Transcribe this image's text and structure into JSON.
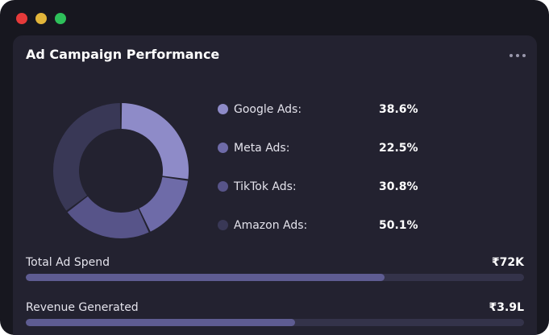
{
  "window": {
    "controls": [
      {
        "name": "close",
        "color": "#e63a3a"
      },
      {
        "name": "minimize",
        "color": "#e2b53a"
      },
      {
        "name": "maximize",
        "color": "#2ec05a"
      }
    ]
  },
  "card": {
    "title": "Ad Campaign Performance",
    "menu_icon": "more-horizontal-icon"
  },
  "chart_data": {
    "type": "pie",
    "style": "donut",
    "categories": [
      "Google Ads",
      "Meta Ads",
      "TikTok Ads",
      "Amazon Ads"
    ],
    "values": [
      38.6,
      22.5,
      30.8,
      50.1
    ],
    "colors": [
      "#8e8bc8",
      "#6e6ba8",
      "#575489",
      "#393856"
    ],
    "legend_placement": "right"
  },
  "legend": [
    {
      "label": "Google Ads:",
      "value": "38.6%"
    },
    {
      "label": "Meta Ads:",
      "value": "22.5%"
    },
    {
      "label": "TikTok Ads:",
      "value": "30.8%"
    },
    {
      "label": "Amazon Ads:",
      "value": "50.1%"
    }
  ],
  "metrics": [
    {
      "label": "Total Ad Spend",
      "value": "₹72K",
      "progress": 0.72
    },
    {
      "label": "Revenue Generated",
      "value": "₹3.9L",
      "progress": 0.54
    }
  ]
}
